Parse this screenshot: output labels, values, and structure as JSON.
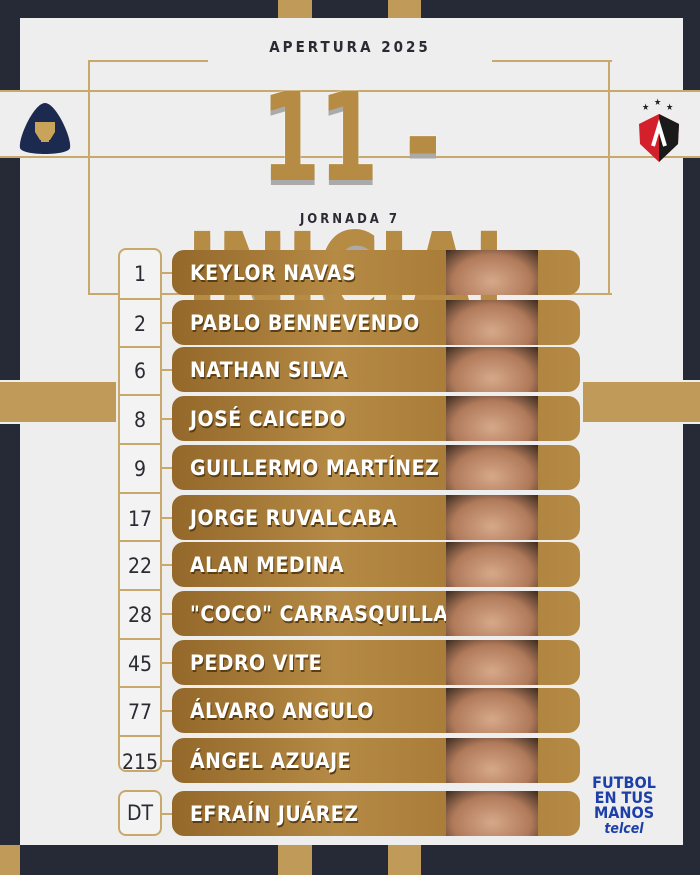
{
  "header": {
    "season": "APERTURA 2025",
    "title": "11 - INICIAL",
    "matchday": "JORNADA 7"
  },
  "teams": {
    "home": "pumas-unam-logo",
    "away": "atlas-logo"
  },
  "colors": {
    "background": "#262a36",
    "panel": "#eeeeee",
    "gold": "#b68c45",
    "brand_blue": "#1d3fa8"
  },
  "lineup": [
    {
      "number": "1",
      "name": "KEYLOR NAVAS"
    },
    {
      "number": "2",
      "name": "PABLO BENNEVENDO"
    },
    {
      "number": "6",
      "name": "NATHAN SILVA"
    },
    {
      "number": "8",
      "name": "JOSÉ CAICEDO"
    },
    {
      "number": "9",
      "name": "GUILLERMO MARTÍNEZ"
    },
    {
      "number": "17",
      "name": "JORGE RUVALCABA"
    },
    {
      "number": "22",
      "name": "ALAN MEDINA"
    },
    {
      "number": "28",
      "name": "\"COCO\" CARRASQUILLA"
    },
    {
      "number": "45",
      "name": "PEDRO VITE"
    },
    {
      "number": "77",
      "name": "ÁLVARO ANGULO"
    },
    {
      "number": "215",
      "name": "ÁNGEL AZUAJE"
    }
  ],
  "coach": {
    "number": "DT",
    "name": "EFRAÍN JUÁREZ"
  },
  "sponsor": {
    "line1": "FUTBOL",
    "line2": "EN TUS",
    "line3": "MANOS",
    "brand": "telcel"
  }
}
